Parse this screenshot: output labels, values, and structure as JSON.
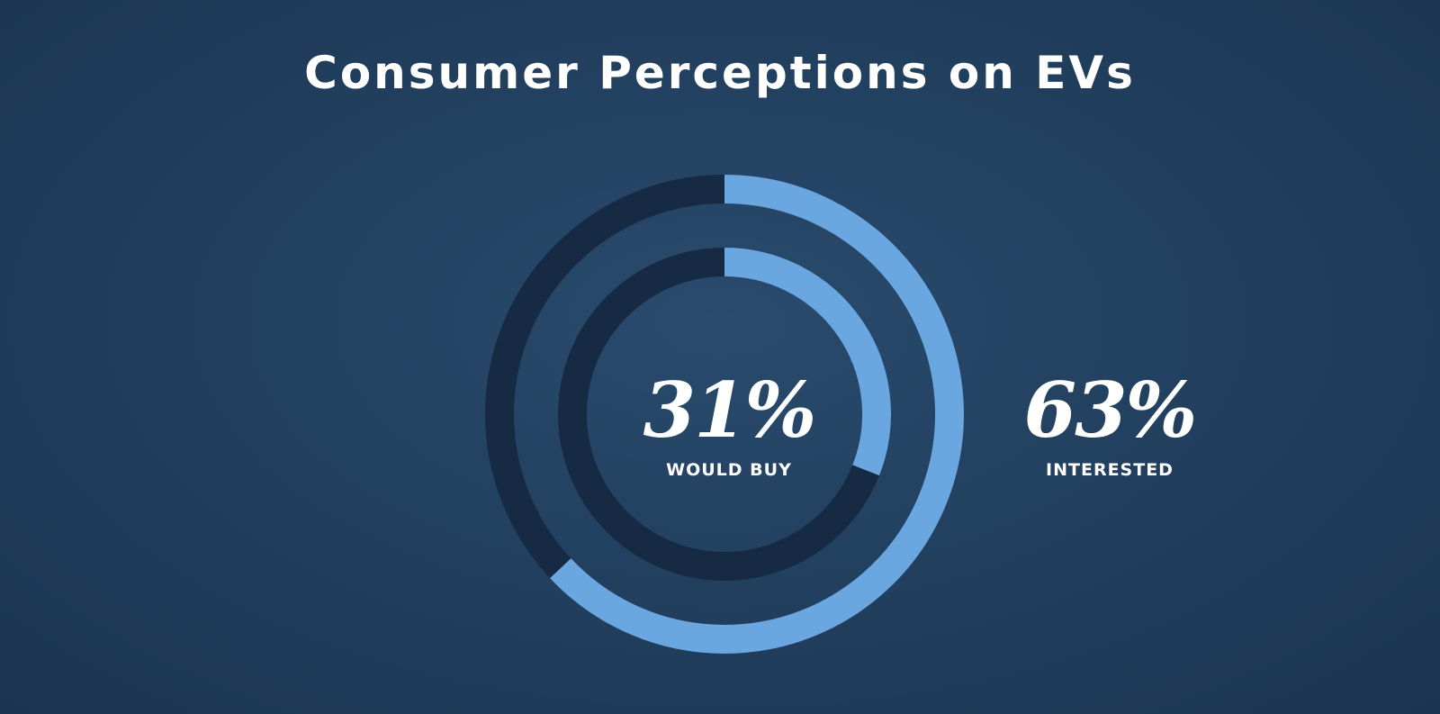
{
  "title": "Consumer Perceptions on EVs",
  "colors": {
    "fill": "#6aa6e0",
    "track": "#172a44"
  },
  "chart_data": {
    "type": "pie",
    "style": "concentric-donut",
    "title": "Consumer Perceptions on EVs",
    "series": [
      {
        "value": 63,
        "value_label": "63%",
        "label": "INTERESTED",
        "ring": "outer"
      },
      {
        "value": 31,
        "value_label": "31%",
        "label": "WOULD BUY",
        "ring": "inner"
      }
    ]
  }
}
